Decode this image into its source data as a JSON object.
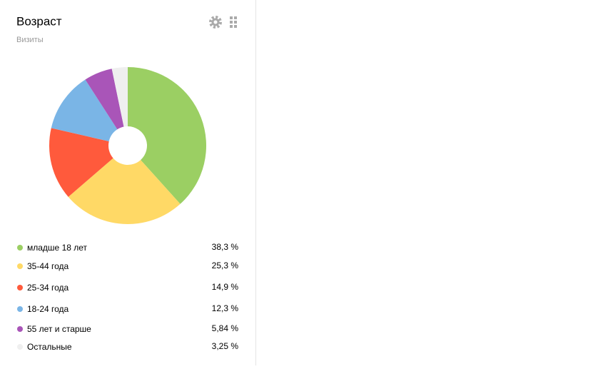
{
  "chart_data": {
    "type": "pie",
    "title": "Возраст",
    "subtitle": "Визиты",
    "categories": [
      "младше 18 лет",
      "35-44 года",
      "25-34 года",
      "18-24 года",
      "55 лет и старше",
      "Остальные"
    ],
    "values": [
      38.3,
      25.3,
      14.9,
      12.3,
      5.84,
      3.25
    ],
    "value_labels": [
      "38,3 %",
      "25,3 %",
      "14,9 %",
      "12,3 %",
      "5,84 %",
      "3,25 %"
    ],
    "colors": [
      "#9bcf63",
      "#ffd966",
      "#ff5a3c",
      "#7ab5e6",
      "#a955b8",
      "#efefef"
    ]
  }
}
